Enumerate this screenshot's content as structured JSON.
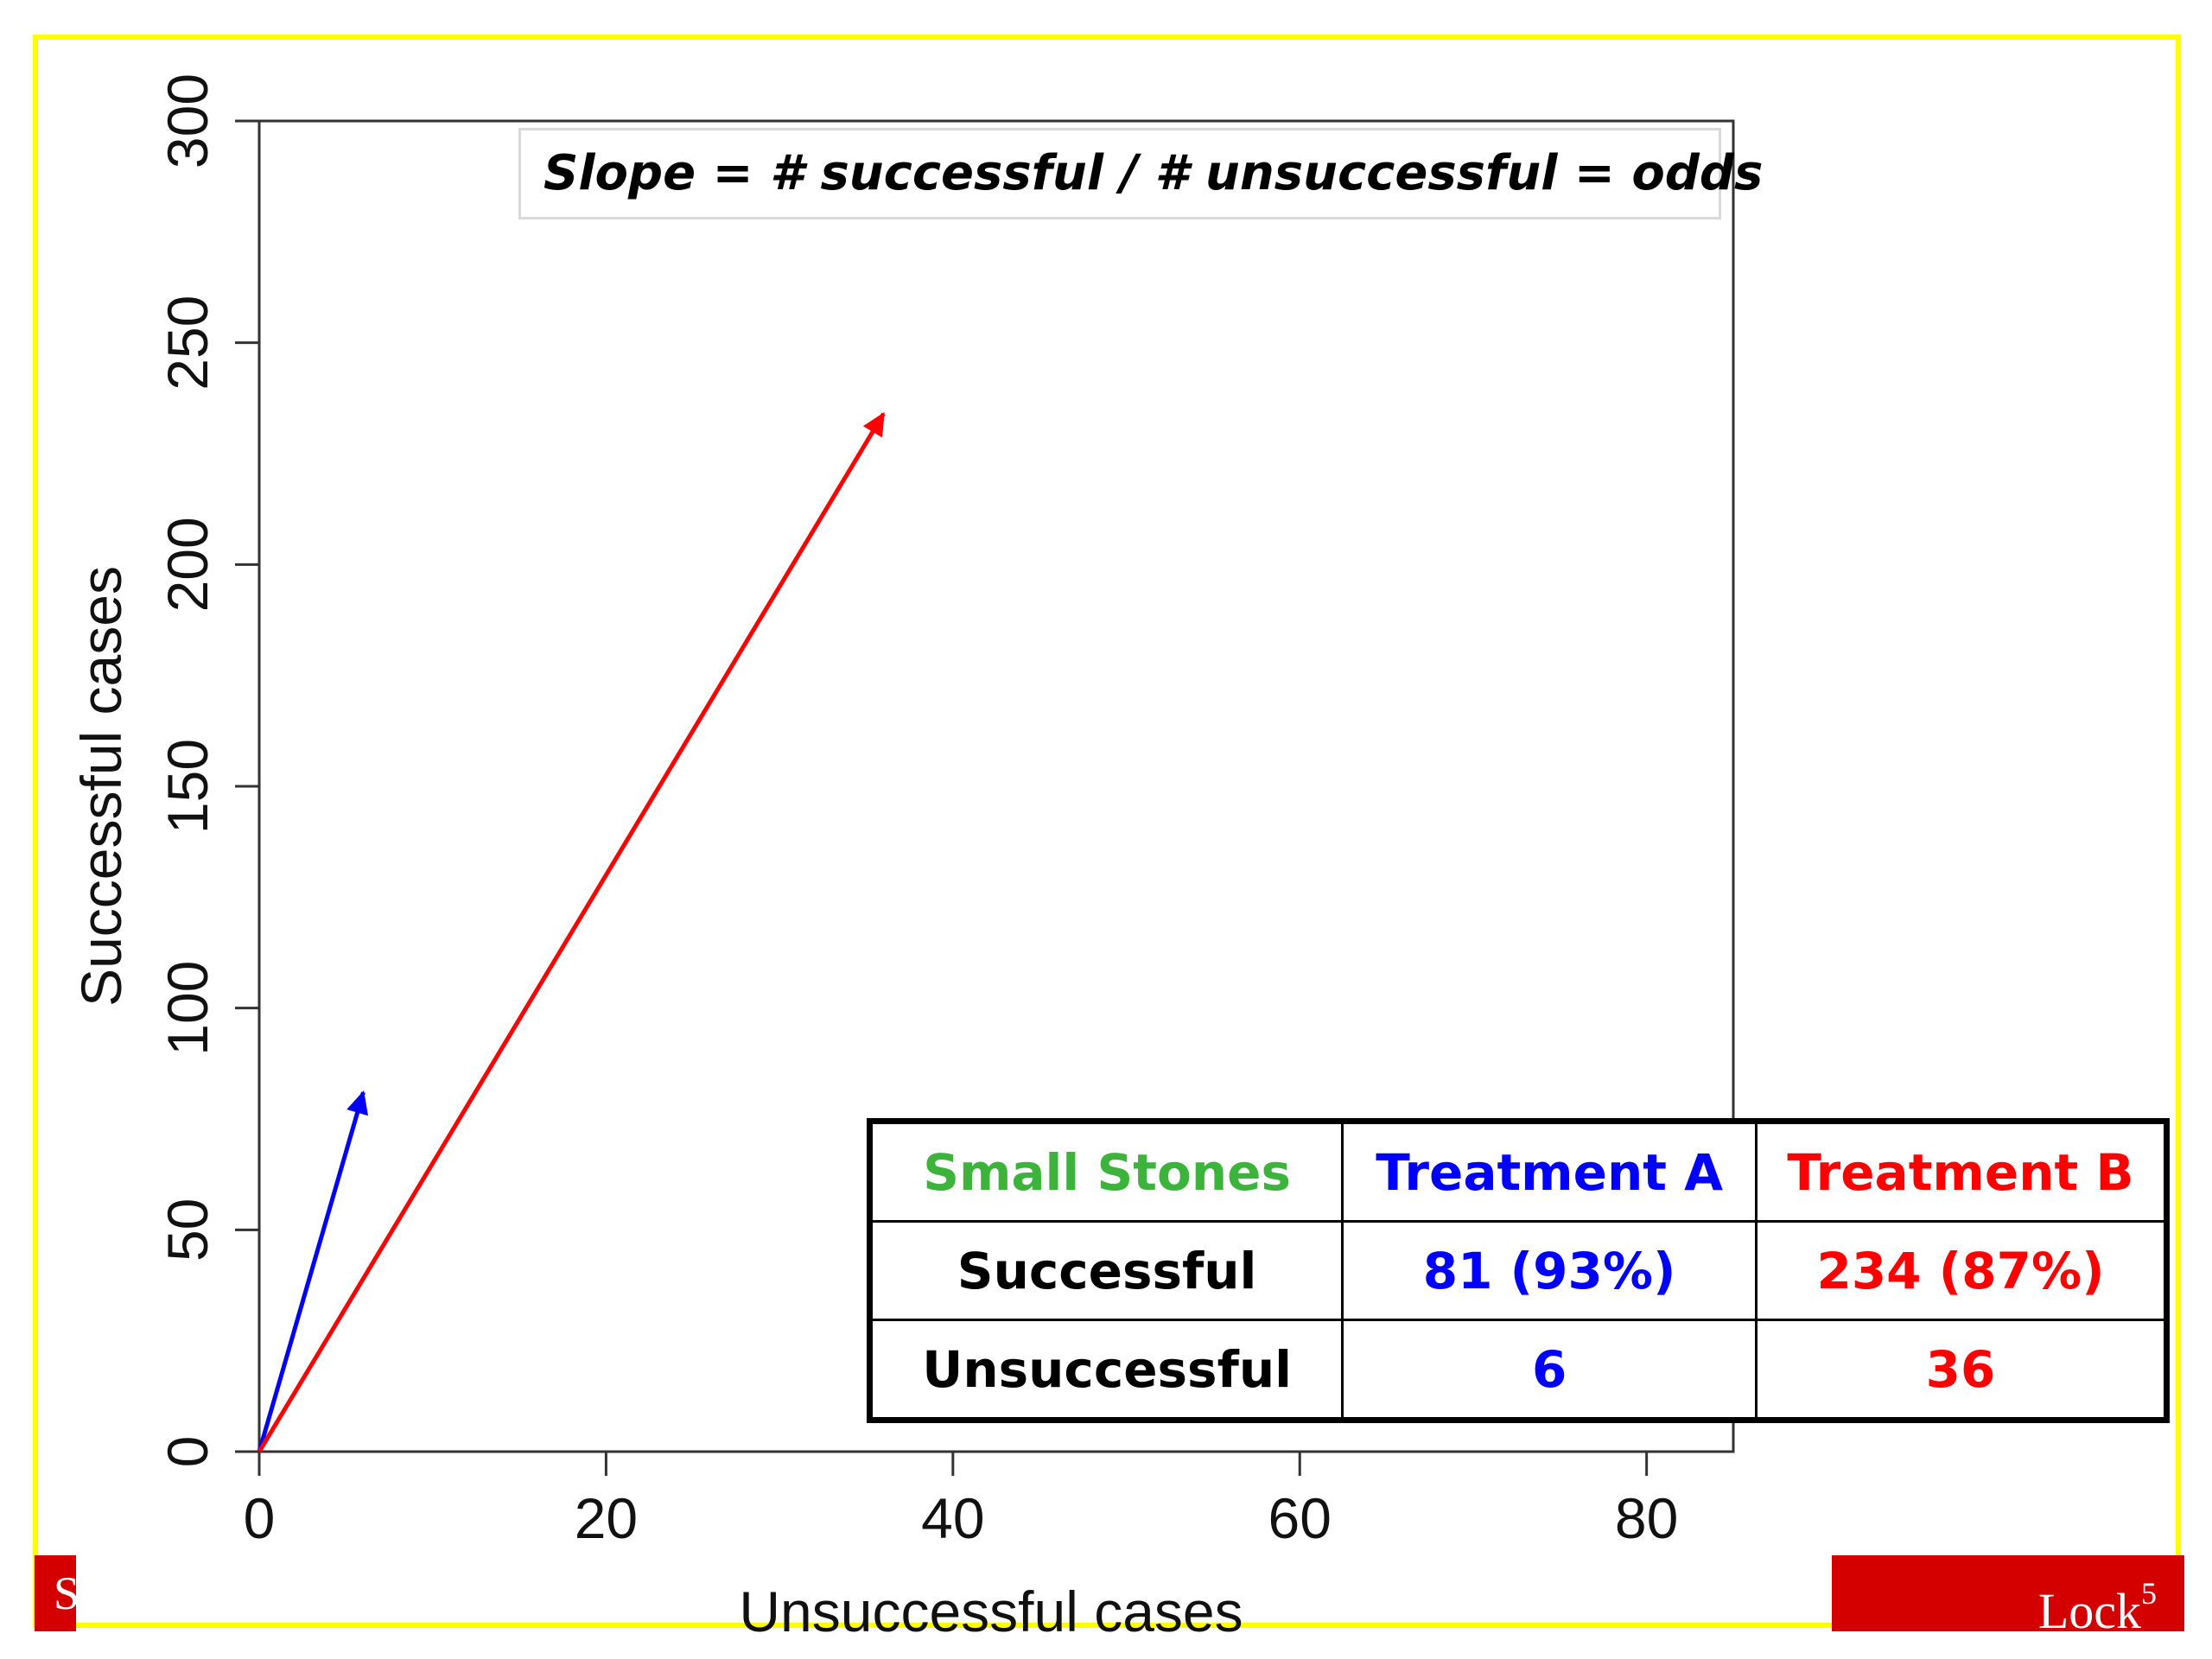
{
  "chart_data": {
    "type": "line",
    "xlabel": "Unsuccessful cases",
    "ylabel": "Successful cases",
    "xlim": [
      0,
      85
    ],
    "ylim": [
      0,
      300
    ],
    "xticks": [
      0,
      20,
      40,
      60,
      80
    ],
    "yticks": [
      0,
      50,
      100,
      150,
      200,
      250,
      300
    ],
    "grid": false,
    "series": [
      {
        "name": "Treatment A",
        "color": "#0000ff",
        "x": [
          0,
          6
        ],
        "y": [
          0,
          81
        ],
        "style": "arrow"
      },
      {
        "name": "Treatment B",
        "color": "#ff0000",
        "x": [
          0,
          36
        ],
        "y": [
          0,
          234
        ],
        "style": "arrow"
      }
    ],
    "annotation": "Slope = # successful / # unsuccessful = odds",
    "table": {
      "header": [
        "Small Stones",
        "Treatment A",
        "Treatment B"
      ],
      "header_colors": [
        "#3cb43c",
        "#0000ff",
        "#ff0000"
      ],
      "rows": [
        {
          "label": "Successful",
          "cells": [
            "81 (93%)",
            "234 (87%)"
          ]
        },
        {
          "label": "Unsuccessful",
          "cells": [
            "6",
            "36"
          ]
        }
      ],
      "cell_colors": [
        "#0000ff",
        "#ff0000"
      ]
    }
  },
  "footer": {
    "left_text": "S",
    "right_text": "Lock",
    "right_superscript": "5",
    "bar_color": "#d40000",
    "frame_color": "#ffff00"
  }
}
